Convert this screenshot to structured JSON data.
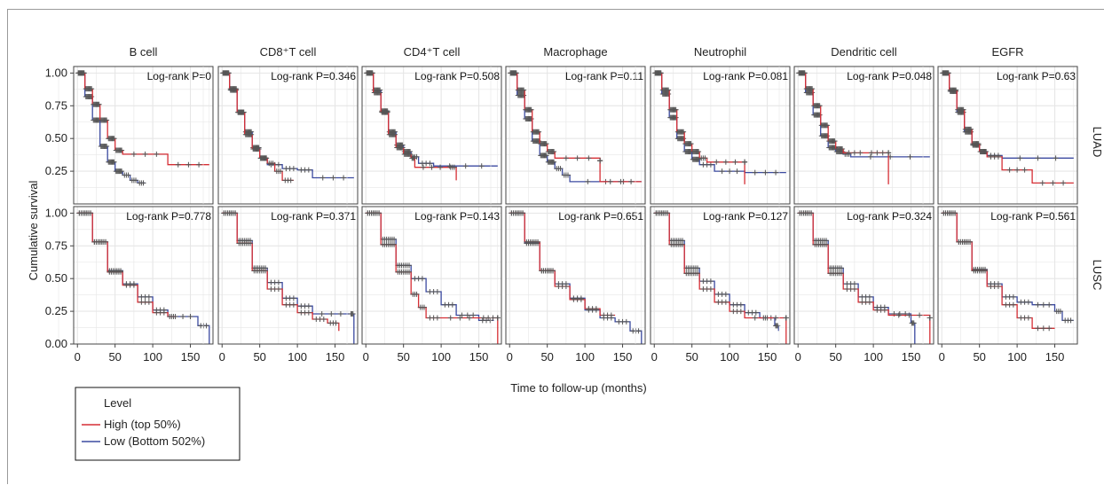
{
  "figure": {
    "ylabel": "Cumulative survival",
    "xlabel": "Time to follow-up (months)",
    "row_labels": [
      "LUAD",
      "LUSC"
    ],
    "legend_title": "Level",
    "legend_placement": "bottom-left",
    "colors": {
      "high": "#d62f35",
      "low": "#3b4aa0",
      "censor": "#555555",
      "grid": "#e6e6e6"
    }
  },
  "chart_data": {
    "type": "line",
    "xlim": [
      -5,
      180
    ],
    "ylim": [
      0,
      1.05
    ],
    "xticks": [
      0,
      50,
      100,
      150
    ],
    "yticks_luad": [
      "0.25",
      "0.50",
      "0.75",
      "1.00"
    ],
    "yticks_lusc": [
      "0.00",
      "0.25",
      "0.50",
      "0.75",
      "1.00"
    ],
    "grid": true,
    "series": [
      {
        "name": "High (top 50%)",
        "color": "#d62f35"
      },
      {
        "name": "Low (Bottom 502%)",
        "color": "#3b4aa0"
      }
    ],
    "panels": [
      {
        "column": "B cell",
        "row": "LUAD",
        "pvalue": "Log-rank P=0",
        "high": [
          [
            0,
            1
          ],
          [
            10,
            0.88
          ],
          [
            20,
            0.76
          ],
          [
            30,
            0.64
          ],
          [
            40,
            0.5
          ],
          [
            50,
            0.41
          ],
          [
            60,
            0.38
          ],
          [
            120,
            0.3
          ],
          [
            175,
            0.3
          ]
        ],
        "low": [
          [
            0,
            1
          ],
          [
            10,
            0.82
          ],
          [
            20,
            0.64
          ],
          [
            30,
            0.44
          ],
          [
            40,
            0.32
          ],
          [
            50,
            0.25
          ],
          [
            60,
            0.22
          ],
          [
            70,
            0.18
          ],
          [
            80,
            0.16
          ],
          [
            90,
            0.16
          ]
        ]
      },
      {
        "column": "CD8⁺T cell",
        "row": "LUAD",
        "pvalue": "Log-rank P=0.346",
        "high": [
          [
            0,
            1
          ],
          [
            10,
            0.88
          ],
          [
            20,
            0.7
          ],
          [
            30,
            0.53
          ],
          [
            40,
            0.42
          ],
          [
            50,
            0.35
          ],
          [
            60,
            0.31
          ],
          [
            70,
            0.25
          ],
          [
            80,
            0.18
          ],
          [
            95,
            0.18
          ]
        ],
        "low": [
          [
            0,
            1
          ],
          [
            10,
            0.87
          ],
          [
            20,
            0.7
          ],
          [
            30,
            0.55
          ],
          [
            40,
            0.43
          ],
          [
            50,
            0.35
          ],
          [
            60,
            0.3
          ],
          [
            80,
            0.27
          ],
          [
            100,
            0.26
          ],
          [
            120,
            0.2
          ],
          [
            175,
            0.2
          ]
        ]
      },
      {
        "column": "CD4⁺T cell",
        "row": "LUAD",
        "pvalue": "Log-rank P=0.508",
        "high": [
          [
            0,
            1
          ],
          [
            10,
            0.85
          ],
          [
            20,
            0.7
          ],
          [
            30,
            0.53
          ],
          [
            40,
            0.43
          ],
          [
            50,
            0.38
          ],
          [
            60,
            0.35
          ],
          [
            65,
            0.28
          ],
          [
            110,
            0.28
          ],
          [
            120,
            0.18
          ]
        ],
        "low": [
          [
            0,
            1
          ],
          [
            10,
            0.87
          ],
          [
            20,
            0.71
          ],
          [
            30,
            0.55
          ],
          [
            40,
            0.45
          ],
          [
            50,
            0.4
          ],
          [
            60,
            0.36
          ],
          [
            70,
            0.31
          ],
          [
            90,
            0.29
          ],
          [
            175,
            0.29
          ]
        ]
      },
      {
        "column": "Macrophage",
        "row": "LUAD",
        "pvalue": "Log-rank P=0.11",
        "high": [
          [
            0,
            1
          ],
          [
            10,
            0.87
          ],
          [
            20,
            0.72
          ],
          [
            30,
            0.55
          ],
          [
            40,
            0.46
          ],
          [
            50,
            0.4
          ],
          [
            60,
            0.35
          ],
          [
            120,
            0.33
          ],
          [
            120,
            0.17
          ],
          [
            175,
            0.17
          ]
        ],
        "low": [
          [
            0,
            1
          ],
          [
            10,
            0.83
          ],
          [
            20,
            0.65
          ],
          [
            30,
            0.48
          ],
          [
            40,
            0.37
          ],
          [
            50,
            0.32
          ],
          [
            60,
            0.27
          ],
          [
            70,
            0.22
          ],
          [
            80,
            0.17
          ],
          [
            175,
            0.17
          ]
        ]
      },
      {
        "column": "Neutrophil",
        "row": "LUAD",
        "pvalue": "Log-rank P=0.081",
        "high": [
          [
            0,
            1
          ],
          [
            10,
            0.87
          ],
          [
            20,
            0.72
          ],
          [
            30,
            0.55
          ],
          [
            40,
            0.46
          ],
          [
            50,
            0.4
          ],
          [
            60,
            0.35
          ],
          [
            70,
            0.32
          ],
          [
            120,
            0.32
          ],
          [
            120,
            0.15
          ]
        ],
        "low": [
          [
            0,
            1
          ],
          [
            10,
            0.84
          ],
          [
            20,
            0.66
          ],
          [
            30,
            0.5
          ],
          [
            40,
            0.4
          ],
          [
            50,
            0.34
          ],
          [
            60,
            0.3
          ],
          [
            80,
            0.25
          ],
          [
            120,
            0.24
          ],
          [
            175,
            0.24
          ]
        ]
      },
      {
        "column": "Dendritic cell",
        "row": "LUAD",
        "pvalue": "Log-rank P=0.048",
        "high": [
          [
            0,
            1
          ],
          [
            10,
            0.88
          ],
          [
            20,
            0.75
          ],
          [
            30,
            0.6
          ],
          [
            40,
            0.48
          ],
          [
            50,
            0.42
          ],
          [
            60,
            0.39
          ],
          [
            90,
            0.39
          ],
          [
            120,
            0.39
          ],
          [
            120,
            0.15
          ]
        ],
        "low": [
          [
            0,
            1
          ],
          [
            10,
            0.85
          ],
          [
            20,
            0.68
          ],
          [
            30,
            0.52
          ],
          [
            40,
            0.43
          ],
          [
            50,
            0.4
          ],
          [
            60,
            0.38
          ],
          [
            70,
            0.36
          ],
          [
            175,
            0.36
          ]
        ]
      },
      {
        "column": "EGFR",
        "row": "LUAD",
        "pvalue": "Log-rank P=0.63",
        "high": [
          [
            0,
            1
          ],
          [
            10,
            0.87
          ],
          [
            20,
            0.72
          ],
          [
            30,
            0.57
          ],
          [
            40,
            0.46
          ],
          [
            50,
            0.4
          ],
          [
            60,
            0.36
          ],
          [
            80,
            0.26
          ],
          [
            120,
            0.16
          ],
          [
            175,
            0.16
          ]
        ],
        "low": [
          [
            0,
            1
          ],
          [
            10,
            0.86
          ],
          [
            20,
            0.7
          ],
          [
            30,
            0.55
          ],
          [
            40,
            0.45
          ],
          [
            50,
            0.4
          ],
          [
            60,
            0.37
          ],
          [
            80,
            0.35
          ],
          [
            175,
            0.35
          ]
        ]
      },
      {
        "column": "B cell",
        "row": "LUSC",
        "pvalue": "Log-rank P=0.778",
        "high": [
          [
            0,
            1
          ],
          [
            20,
            0.78
          ],
          [
            40,
            0.55
          ],
          [
            60,
            0.45
          ],
          [
            80,
            0.32
          ],
          [
            100,
            0.24
          ],
          [
            120,
            0.21
          ],
          [
            130,
            0.21
          ]
        ],
        "low": [
          [
            0,
            1
          ],
          [
            20,
            0.78
          ],
          [
            40,
            0.56
          ],
          [
            60,
            0.46
          ],
          [
            80,
            0.36
          ],
          [
            100,
            0.26
          ],
          [
            120,
            0.21
          ],
          [
            160,
            0.14
          ],
          [
            175,
            0.0
          ]
        ]
      },
      {
        "column": "CD8⁺T cell",
        "row": "LUSC",
        "pvalue": "Log-rank P=0.371",
        "high": [
          [
            0,
            1
          ],
          [
            20,
            0.77
          ],
          [
            40,
            0.56
          ],
          [
            60,
            0.42
          ],
          [
            80,
            0.3
          ],
          [
            100,
            0.24
          ],
          [
            120,
            0.19
          ],
          [
            140,
            0.16
          ],
          [
            155,
            0.1
          ]
        ],
        "low": [
          [
            0,
            1
          ],
          [
            20,
            0.79
          ],
          [
            40,
            0.58
          ],
          [
            60,
            0.47
          ],
          [
            80,
            0.35
          ],
          [
            100,
            0.29
          ],
          [
            120,
            0.23
          ],
          [
            170,
            0.23
          ],
          [
            175,
            0.0
          ]
        ]
      },
      {
        "column": "CD4⁺T cell",
        "row": "LUSC",
        "pvalue": "Log-rank P=0.143",
        "high": [
          [
            0,
            1
          ],
          [
            20,
            0.76
          ],
          [
            40,
            0.55
          ],
          [
            60,
            0.38
          ],
          [
            70,
            0.28
          ],
          [
            80,
            0.2
          ],
          [
            100,
            0.2
          ],
          [
            150,
            0.2
          ],
          [
            175,
            0.2
          ],
          [
            175,
            0.0
          ]
        ],
        "low": [
          [
            0,
            1
          ],
          [
            20,
            0.8
          ],
          [
            40,
            0.6
          ],
          [
            60,
            0.5
          ],
          [
            80,
            0.4
          ],
          [
            100,
            0.3
          ],
          [
            120,
            0.22
          ],
          [
            150,
            0.18
          ],
          [
            170,
            0.18
          ]
        ]
      },
      {
        "column": "Macrophage",
        "row": "LUSC",
        "pvalue": "Log-rank P=0.651",
        "high": [
          [
            0,
            1
          ],
          [
            20,
            0.78
          ],
          [
            40,
            0.56
          ],
          [
            60,
            0.44
          ],
          [
            80,
            0.34
          ],
          [
            100,
            0.27
          ],
          [
            120,
            0.22
          ],
          [
            140,
            0.22
          ]
        ],
        "low": [
          [
            0,
            1
          ],
          [
            20,
            0.77
          ],
          [
            40,
            0.56
          ],
          [
            60,
            0.46
          ],
          [
            80,
            0.35
          ],
          [
            100,
            0.26
          ],
          [
            120,
            0.2
          ],
          [
            140,
            0.17
          ],
          [
            160,
            0.1
          ],
          [
            175,
            0.0
          ]
        ]
      },
      {
        "column": "Neutrophil",
        "row": "LUSC",
        "pvalue": "Log-rank P=0.127",
        "high": [
          [
            0,
            1
          ],
          [
            20,
            0.76
          ],
          [
            40,
            0.54
          ],
          [
            60,
            0.42
          ],
          [
            80,
            0.32
          ],
          [
            100,
            0.25
          ],
          [
            120,
            0.2
          ],
          [
            175,
            0.2
          ],
          [
            175,
            0.0
          ]
        ],
        "low": [
          [
            0,
            1
          ],
          [
            20,
            0.79
          ],
          [
            40,
            0.58
          ],
          [
            60,
            0.48
          ],
          [
            80,
            0.38
          ],
          [
            100,
            0.3
          ],
          [
            120,
            0.24
          ],
          [
            140,
            0.2
          ],
          [
            160,
            0.14
          ],
          [
            165,
            0.1
          ]
        ]
      },
      {
        "column": "Dendritic cell",
        "row": "LUSC",
        "pvalue": "Log-rank P=0.324",
        "high": [
          [
            0,
            1
          ],
          [
            20,
            0.76
          ],
          [
            40,
            0.54
          ],
          [
            60,
            0.42
          ],
          [
            80,
            0.32
          ],
          [
            100,
            0.26
          ],
          [
            120,
            0.22
          ],
          [
            175,
            0.2
          ],
          [
            175,
            0.0
          ]
        ],
        "low": [
          [
            0,
            1
          ],
          [
            20,
            0.79
          ],
          [
            40,
            0.58
          ],
          [
            60,
            0.46
          ],
          [
            80,
            0.36
          ],
          [
            100,
            0.28
          ],
          [
            120,
            0.23
          ],
          [
            150,
            0.16
          ],
          [
            155,
            0.0
          ]
        ]
      },
      {
        "column": "EGFR",
        "row": "LUSC",
        "pvalue": "Log-rank P=0.561",
        "high": [
          [
            0,
            1
          ],
          [
            20,
            0.78
          ],
          [
            40,
            0.56
          ],
          [
            60,
            0.44
          ],
          [
            80,
            0.3
          ],
          [
            100,
            0.2
          ],
          [
            120,
            0.12
          ],
          [
            150,
            0.12
          ]
        ],
        "low": [
          [
            0,
            1
          ],
          [
            20,
            0.78
          ],
          [
            40,
            0.57
          ],
          [
            60,
            0.46
          ],
          [
            80,
            0.36
          ],
          [
            100,
            0.32
          ],
          [
            120,
            0.3
          ],
          [
            150,
            0.25
          ],
          [
            160,
            0.18
          ],
          [
            175,
            0.18
          ]
        ]
      }
    ]
  }
}
